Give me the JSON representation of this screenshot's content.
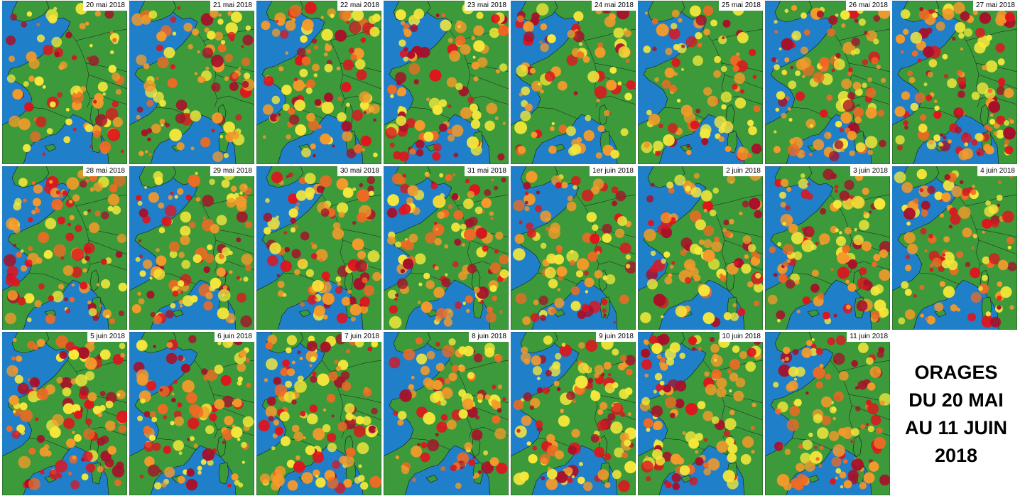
{
  "colors": {
    "sea": "#1f7fc8",
    "land": "#3c9a3a",
    "land_light": "#5aa84a",
    "border": "#1a1a1a",
    "yellow": "#f7e83a",
    "orange": "#f59a2a",
    "orange_red": "#ef6a24",
    "red": "#e0141e",
    "dark_red": "#a8102a"
  },
  "maps": [
    {
      "date": "20 mai 2018",
      "intensity": 0.35,
      "seed": 11
    },
    {
      "date": "21 mai 2018",
      "intensity": 0.45,
      "seed": 12
    },
    {
      "date": "22 mai 2018",
      "intensity": 0.55,
      "seed": 13
    },
    {
      "date": "23 mai 2018",
      "intensity": 0.5,
      "seed": 14
    },
    {
      "date": "24 mai 2018",
      "intensity": 0.4,
      "seed": 15
    },
    {
      "date": "25 mai 2018",
      "intensity": 0.45,
      "seed": 16
    },
    {
      "date": "26 mai 2018",
      "intensity": 0.65,
      "seed": 17
    },
    {
      "date": "27 mai 2018",
      "intensity": 0.7,
      "seed": 18
    },
    {
      "date": "28 mai 2018",
      "intensity": 0.6,
      "seed": 19
    },
    {
      "date": "29 mai 2018",
      "intensity": 0.6,
      "seed": 20
    },
    {
      "date": "30 mai 2018",
      "intensity": 0.55,
      "seed": 21
    },
    {
      "date": "31 mai 2018",
      "intensity": 0.65,
      "seed": 22
    },
    {
      "date": "1er juin 2018",
      "intensity": 0.45,
      "seed": 23
    },
    {
      "date": "2 juin 2018",
      "intensity": 0.5,
      "seed": 24
    },
    {
      "date": "3 juin 2018",
      "intensity": 0.55,
      "seed": 25
    },
    {
      "date": "4 juin 2018",
      "intensity": 0.55,
      "seed": 26
    },
    {
      "date": "5 juin 2018",
      "intensity": 0.65,
      "seed": 27
    },
    {
      "date": "6 juin 2018",
      "intensity": 0.55,
      "seed": 28
    },
    {
      "date": "7 juin 2018",
      "intensity": 0.65,
      "seed": 29
    },
    {
      "date": "8 juin 2018",
      "intensity": 0.45,
      "seed": 30
    },
    {
      "date": "9 juin 2018",
      "intensity": 0.65,
      "seed": 31
    },
    {
      "date": "10 juin 2018",
      "intensity": 0.6,
      "seed": 32
    },
    {
      "date": "11 juin 2018",
      "intensity": 0.6,
      "seed": 33
    }
  ],
  "title": {
    "line1": "ORAGES",
    "line2": "DU 20 MAI",
    "line3": "AU 11 JUIN",
    "line4": "2018"
  }
}
